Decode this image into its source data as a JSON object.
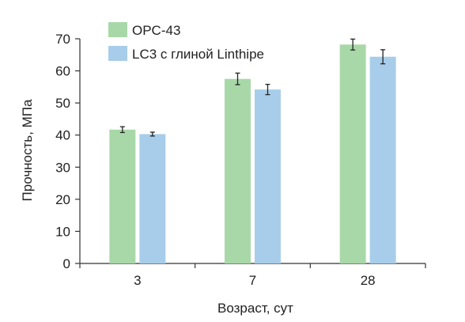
{
  "chart_data": {
    "type": "bar",
    "categories": [
      "3",
      "7",
      "28"
    ],
    "series": [
      {
        "name": "OPC-43",
        "values": [
          41.7,
          57.5,
          68.2
        ],
        "errors": [
          0.9,
          1.8,
          1.7
        ],
        "color": "#a8d8a8"
      },
      {
        "name": "LC3 с  глиной Linthipe",
        "values": [
          40.3,
          54.2,
          64.4
        ],
        "errors": [
          0.6,
          1.6,
          2.2
        ],
        "color": "#a8cdea"
      }
    ],
    "xlabel": "Возраст, сут",
    "ylabel": "Прочность, МПа",
    "ylim": [
      0,
      70
    ],
    "yticks": [
      "0",
      "10",
      "20",
      "30",
      "40",
      "50",
      "60",
      "70"
    ],
    "grid": false,
    "legend_position": "top-left"
  }
}
